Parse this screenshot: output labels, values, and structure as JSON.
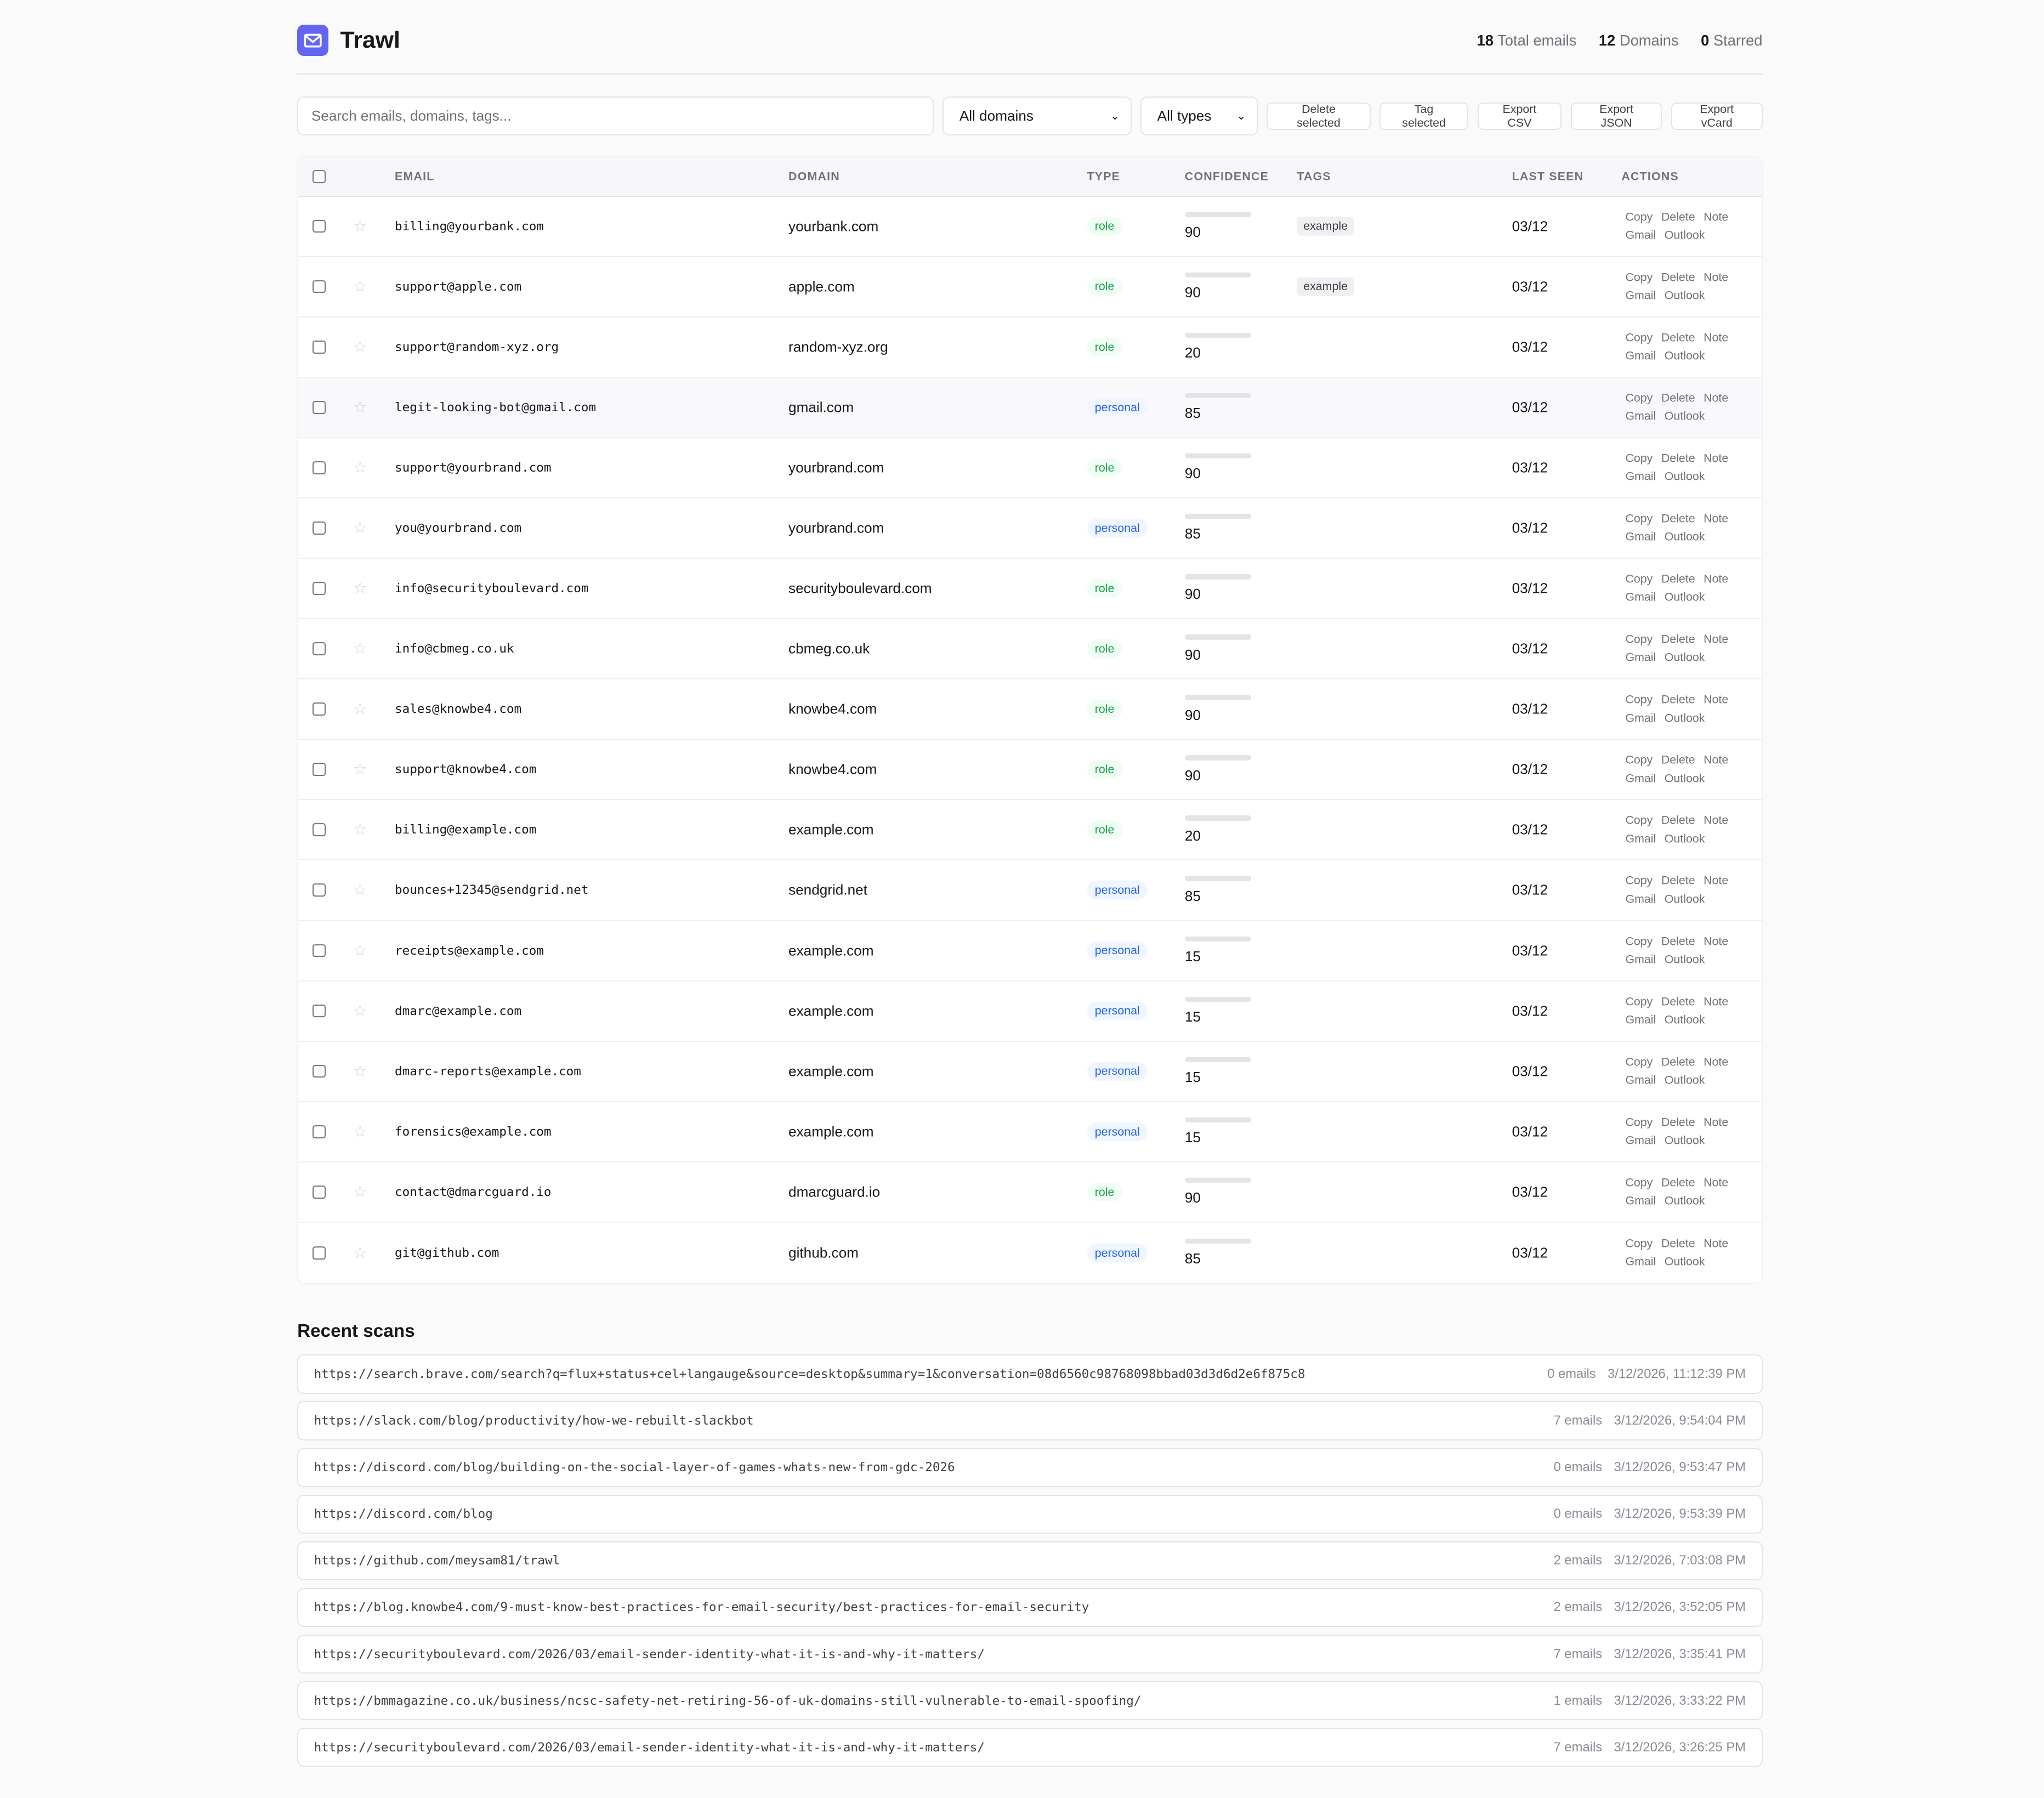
{
  "app": {
    "title": "Trawl",
    "logo_icon": "mail-icon",
    "accent": "#6366f1"
  },
  "stats": [
    {
      "value": "18",
      "label": "Total emails"
    },
    {
      "value": "12",
      "label": "Domains"
    },
    {
      "value": "0",
      "label": "Starred"
    }
  ],
  "toolbar": {
    "search_placeholder": "Search emails, domains, tags...",
    "domain_filter": "All domains",
    "type_filter": "All types",
    "buttons": [
      "Delete selected",
      "Tag selected",
      "Export CSV",
      "Export JSON",
      "Export vCard"
    ]
  },
  "table": {
    "columns": [
      "EMAIL",
      "DOMAIN",
      "TYPE",
      "CONFIDENCE",
      "TAGS",
      "LAST SEEN",
      "ACTIONS"
    ],
    "actions": [
      "Copy",
      "Delete",
      "Note",
      "Gmail",
      "Outlook"
    ],
    "rows": [
      {
        "email": "billing@yourbank.com",
        "domain": "yourbank.com",
        "type": "role",
        "confidence": 90,
        "tag": "example",
        "last_seen": "03/12"
      },
      {
        "email": "support@apple.com",
        "domain": "apple.com",
        "type": "role",
        "confidence": 90,
        "tag": "example",
        "last_seen": "03/12"
      },
      {
        "email": "support@random-xyz.org",
        "domain": "random-xyz.org",
        "type": "role",
        "confidence": 20,
        "tag": "",
        "last_seen": "03/12"
      },
      {
        "email": "legit-looking-bot@gmail.com",
        "domain": "gmail.com",
        "type": "personal",
        "confidence": 85,
        "tag": "",
        "last_seen": "03/12"
      },
      {
        "email": "support@yourbrand.com",
        "domain": "yourbrand.com",
        "type": "role",
        "confidence": 90,
        "tag": "",
        "last_seen": "03/12"
      },
      {
        "email": "you@yourbrand.com",
        "domain": "yourbrand.com",
        "type": "personal",
        "confidence": 85,
        "tag": "",
        "last_seen": "03/12"
      },
      {
        "email": "info@securityboulevard.com",
        "domain": "securityboulevard.com",
        "type": "role",
        "confidence": 90,
        "tag": "",
        "last_seen": "03/12"
      },
      {
        "email": "info@cbmeg.co.uk",
        "domain": "cbmeg.co.uk",
        "type": "role",
        "confidence": 90,
        "tag": "",
        "last_seen": "03/12"
      },
      {
        "email": "sales@knowbe4.com",
        "domain": "knowbe4.com",
        "type": "role",
        "confidence": 90,
        "tag": "",
        "last_seen": "03/12"
      },
      {
        "email": "support@knowbe4.com",
        "domain": "knowbe4.com",
        "type": "role",
        "confidence": 90,
        "tag": "",
        "last_seen": "03/12"
      },
      {
        "email": "billing@example.com",
        "domain": "example.com",
        "type": "role",
        "confidence": 20,
        "tag": "",
        "last_seen": "03/12"
      },
      {
        "email": "bounces+12345@sendgrid.net",
        "domain": "sendgrid.net",
        "type": "personal",
        "confidence": 85,
        "tag": "",
        "last_seen": "03/12"
      },
      {
        "email": "receipts@example.com",
        "domain": "example.com",
        "type": "personal",
        "confidence": 15,
        "tag": "",
        "last_seen": "03/12"
      },
      {
        "email": "dmarc@example.com",
        "domain": "example.com",
        "type": "personal",
        "confidence": 15,
        "tag": "",
        "last_seen": "03/12"
      },
      {
        "email": "dmarc-reports@example.com",
        "domain": "example.com",
        "type": "personal",
        "confidence": 15,
        "tag": "",
        "last_seen": "03/12"
      },
      {
        "email": "forensics@example.com",
        "domain": "example.com",
        "type": "personal",
        "confidence": 15,
        "tag": "",
        "last_seen": "03/12"
      },
      {
        "email": "contact@dmarcguard.io",
        "domain": "dmarcguard.io",
        "type": "role",
        "confidence": 90,
        "tag": "",
        "last_seen": "03/12"
      },
      {
        "email": "git@github.com",
        "domain": "github.com",
        "type": "personal",
        "confidence": 85,
        "tag": "",
        "last_seen": "03/12"
      }
    ]
  },
  "recent_scans": {
    "title": "Recent scans",
    "items": [
      {
        "url": "https://search.brave.com/search?q=flux+status+cel+langauge&source=desktop&summary=1&conversation=08d6560c98768098bbad03d3d6d2e6f875c8",
        "count": "0 emails",
        "time": "3/12/2026, 11:12:39 PM"
      },
      {
        "url": "https://slack.com/blog/productivity/how-we-rebuilt-slackbot",
        "count": "7 emails",
        "time": "3/12/2026, 9:54:04 PM"
      },
      {
        "url": "https://discord.com/blog/building-on-the-social-layer-of-games-whats-new-from-gdc-2026",
        "count": "0 emails",
        "time": "3/12/2026, 9:53:47 PM"
      },
      {
        "url": "https://discord.com/blog",
        "count": "0 emails",
        "time": "3/12/2026, 9:53:39 PM"
      },
      {
        "url": "https://github.com/meysam81/trawl",
        "count": "2 emails",
        "time": "3/12/2026, 7:03:08 PM"
      },
      {
        "url": "https://blog.knowbe4.com/9-must-know-best-practices-for-email-security/best-practices-for-email-security",
        "count": "2 emails",
        "time": "3/12/2026, 3:52:05 PM"
      },
      {
        "url": "https://securityboulevard.com/2026/03/email-sender-identity-what-it-is-and-why-it-matters/",
        "count": "7 emails",
        "time": "3/12/2026, 3:35:41 PM"
      },
      {
        "url": "https://bmmagazine.co.uk/business/ncsc-safety-net-retiring-56-of-uk-domains-still-vulnerable-to-email-spoofing/",
        "count": "1 emails",
        "time": "3/12/2026, 3:33:22 PM"
      },
      {
        "url": "https://securityboulevard.com/2026/03/email-sender-identity-what-it-is-and-why-it-matters/",
        "count": "7 emails",
        "time": "3/12/2026, 3:26:25 PM"
      }
    ]
  }
}
